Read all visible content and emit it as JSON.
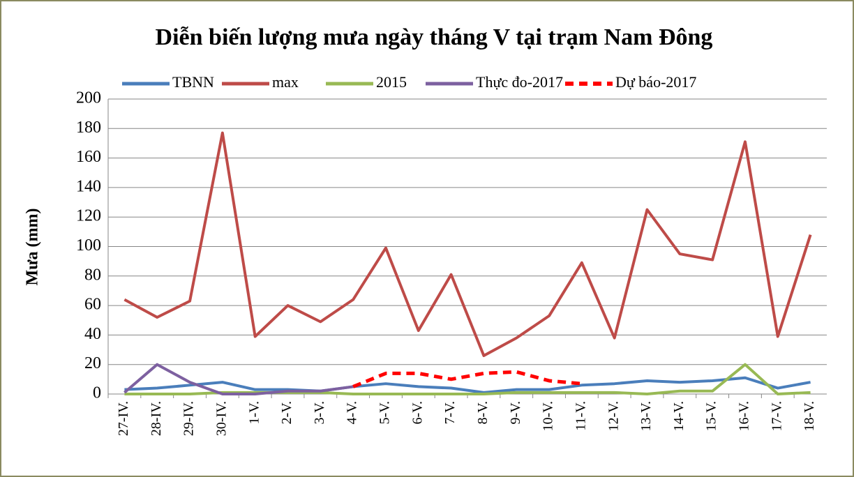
{
  "chart_data": {
    "type": "line",
    "title": "Diễn biến lượng mưa ngày tháng V tại trạm Nam Đông",
    "y_label": "Mưa (mm)",
    "categories": [
      "27-IV.",
      "28-IV.",
      "29-IV.",
      "30-IV.",
      "1-V.",
      "2-V.",
      "3-V.",
      "4-V.",
      "5-V.",
      "6-V.",
      "7-V.",
      "8-V.",
      "9-V.",
      "10-V.",
      "11-V.",
      "12-V.",
      "13-V.",
      "14-V.",
      "15-V.",
      "16-V.",
      "17-V.",
      "18-V."
    ],
    "series": [
      {
        "name": "TBNN",
        "color": "#4a7ebb",
        "style": "solid",
        "values": [
          3,
          4,
          6,
          8,
          3,
          3,
          2,
          5,
          7,
          5,
          4,
          1,
          3,
          3,
          6,
          7,
          9,
          8,
          9,
          11,
          4,
          8
        ]
      },
      {
        "name": "max",
        "color": "#be4b48",
        "style": "solid",
        "values": [
          64,
          52,
          63,
          177,
          39,
          60,
          49,
          64,
          99,
          43,
          81,
          26,
          38,
          53,
          89,
          38,
          125,
          95,
          91,
          171,
          39,
          108
        ]
      },
      {
        "name": "2015",
        "color": "#98b954",
        "style": "solid",
        "values": [
          0,
          0,
          0,
          1,
          1,
          1,
          1,
          0,
          0,
          0,
          0,
          0,
          1,
          1,
          1,
          1,
          0,
          2,
          2,
          20,
          0,
          1
        ]
      },
      {
        "name": "Thực đo-2017",
        "color": "#7d60a0",
        "style": "solid",
        "values": [
          1,
          20,
          8,
          0,
          0,
          2,
          2,
          5,
          null,
          null,
          null,
          null,
          null,
          null,
          null,
          null,
          null,
          null,
          null,
          null,
          null,
          null
        ]
      },
      {
        "name": "Dự báo-2017",
        "color": "#ff0000",
        "style": "dashed",
        "values": [
          null,
          null,
          null,
          null,
          null,
          null,
          null,
          5,
          14,
          14,
          10,
          14,
          15,
          9,
          7,
          null,
          null,
          null,
          null,
          null,
          null,
          null
        ]
      }
    ],
    "ylim": [
      0,
      200
    ],
    "yticks": [
      0,
      20,
      40,
      60,
      80,
      100,
      120,
      140,
      160,
      180,
      200
    ],
    "grid": true,
    "legend": "top"
  }
}
